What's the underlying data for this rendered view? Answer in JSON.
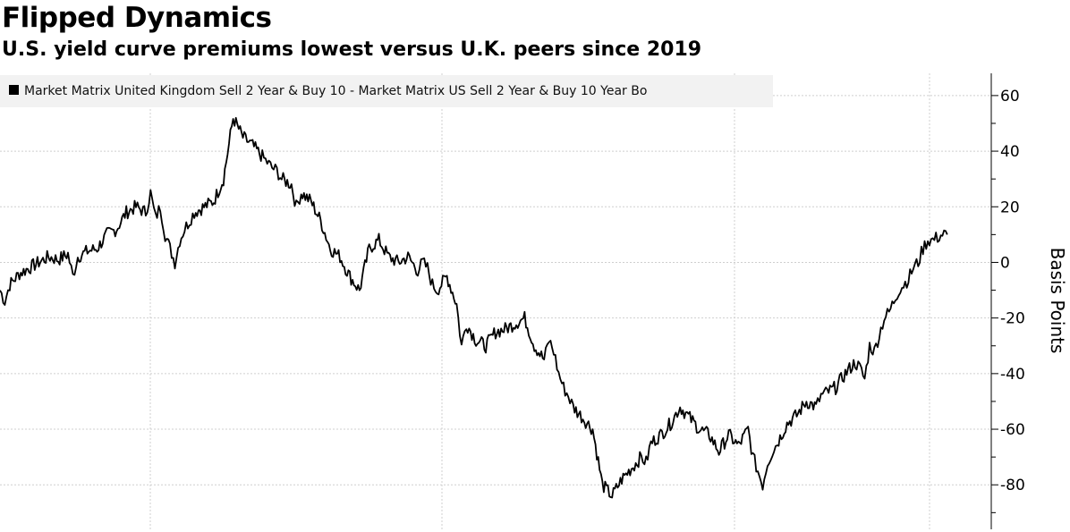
{
  "header": {
    "title": "Flipped Dynamics",
    "subtitle": "U.S. yield curve premiums lowest versus U.K. peers since 2019"
  },
  "chart_data": {
    "type": "line",
    "legend": "Market Matrix United Kingdom Sell 2 Year & Buy 10 - Market Matrix US Sell 2 Year & Buy 10 Year Bo",
    "ylabel": "Basis Points",
    "ylim": [
      -96,
      68
    ],
    "yticks": [
      60,
      40,
      20,
      0,
      -20,
      -40,
      -60,
      -80
    ],
    "grid": true,
    "legend_position": "top-left",
    "line_color": "#000000",
    "series": [
      {
        "x": [
          0,
          0.005,
          0.01,
          0.02,
          0.03,
          0.04,
          0.05,
          0.06,
          0.07,
          0.075,
          0.08,
          0.09,
          0.1,
          0.11,
          0.12,
          0.13,
          0.14,
          0.15,
          0.155,
          0.16,
          0.165,
          0.17,
          0.175,
          0.18,
          0.185,
          0.19,
          0.195,
          0.2,
          0.21,
          0.22,
          0.23,
          0.24,
          0.25,
          0.26,
          0.27,
          0.275,
          0.28,
          0.285,
          0.29,
          0.3,
          0.305,
          0.31,
          0.32,
          0.33,
          0.34,
          0.35,
          0.36,
          0.37,
          0.38,
          0.39,
          0.4,
          0.41,
          0.42,
          0.43,
          0.435,
          0.44,
          0.445,
          0.45,
          0.46,
          0.47,
          0.475,
          0.48,
          0.49,
          0.5,
          0.51,
          0.52,
          0.53,
          0.54,
          0.55,
          0.56,
          0.565,
          0.57,
          0.575,
          0.58,
          0.585,
          0.59,
          0.6,
          0.61,
          0.62,
          0.63,
          0.64,
          0.65,
          0.66,
          0.665,
          0.67,
          0.68,
          0.69,
          0.7,
          0.71,
          0.72,
          0.73,
          0.74,
          0.75,
          0.76,
          0.77,
          0.775,
          0.78,
          0.785,
          0.79,
          0.795,
          0.8,
          0.81,
          0.82,
          0.83,
          0.84,
          0.845,
          0.85,
          0.86,
          0.87,
          0.88,
          0.885,
          0.89,
          0.895,
          0.9,
          0.905,
          0.91,
          0.915,
          0.92,
          0.925,
          0.93,
          0.935,
          0.94,
          0.945,
          0.95,
          0.955,
          0.96,
          0.965,
          0.97,
          0.975
        ],
        "values": [
          -10,
          -14,
          -8,
          -4,
          -2,
          0,
          2,
          1,
          3,
          -5,
          2,
          4,
          5,
          10,
          12,
          18,
          20,
          18,
          25,
          16,
          20,
          10,
          5,
          0,
          8,
          12,
          15,
          18,
          20,
          22,
          30,
          52,
          45,
          42,
          38,
          36,
          34,
          33,
          30,
          28,
          20,
          25,
          22,
          15,
          5,
          2,
          -5,
          -10,
          5,
          8,
          2,
          0,
          2,
          -3,
          0,
          -2,
          -8,
          -10,
          -5,
          -15,
          -30,
          -22,
          -28,
          -30,
          -25,
          -24,
          -22,
          -20,
          -30,
          -35,
          -28,
          -32,
          -40,
          -45,
          -48,
          -52,
          -56,
          -60,
          -80,
          -84,
          -78,
          -74,
          -70,
          -72,
          -65,
          -62,
          -58,
          -52,
          -56,
          -60,
          -62,
          -68,
          -62,
          -66,
          -60,
          -70,
          -75,
          -80,
          -72,
          -68,
          -65,
          -58,
          -55,
          -50,
          -52,
          -48,
          -47,
          -45,
          -40,
          -36,
          -38,
          -42,
          -30,
          -32,
          -26,
          -20,
          -18,
          -14,
          -10,
          -8,
          -6,
          -2,
          0,
          5,
          8,
          8,
          9,
          10,
          10
        ]
      }
    ]
  }
}
